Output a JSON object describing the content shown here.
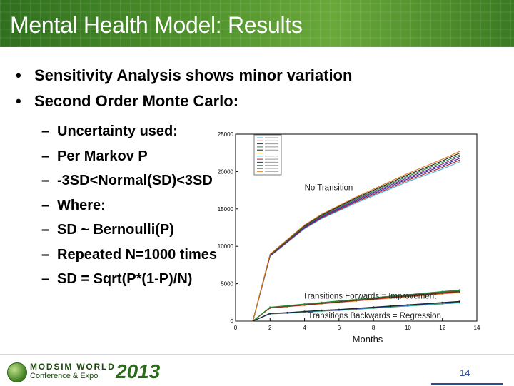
{
  "slide": {
    "title": "Mental Health Model: Results",
    "bullets": [
      "Sensitivity Analysis shows minor variation",
      "Second Order Monte Carlo:"
    ],
    "subbullets": [
      "Uncertainty used:",
      "Per Markov P",
      "-3SD<Normal(SD)<3SD",
      "Where:",
      "SD ~ Bernoulli(P)",
      "Repeated N=1000 times",
      "SD = Sqrt(P*(1-P)/N)"
    ],
    "bullet_marker": "•",
    "dash_marker": "–",
    "page_number": "14"
  },
  "footer": {
    "logo_line1": "MODSIM WORLD",
    "logo_line2": "Conference & Expo",
    "logo_year": "2013"
  },
  "colors": {
    "header": "#4c8f2a",
    "page_number": "#2a4a9a"
  },
  "chart_data": {
    "type": "line",
    "xlabel": "Months",
    "ylabel": "",
    "xlim": [
      0,
      14
    ],
    "ylim": [
      0,
      25000
    ],
    "x_ticks": [
      0,
      2,
      4,
      6,
      8,
      10,
      12,
      14
    ],
    "y_ticks": [
      0,
      5000,
      10000,
      15000,
      20000,
      25000
    ],
    "grid": false,
    "annotations": [
      "No Transition",
      "Transitions Forwards = Improvement",
      "Transitions Backwards = Regression"
    ],
    "groups": [
      {
        "label": "No Transition",
        "x": [
          1,
          2,
          3,
          4,
          5,
          6,
          7,
          8,
          9,
          10,
          11,
          12,
          13
        ],
        "y": [
          1000,
          8800,
          10700,
          12600,
          14000,
          15100,
          16200,
          17200,
          18200,
          19200,
          20100,
          21000,
          22000
        ],
        "spread": [
          0,
          150,
          200,
          250,
          300,
          350,
          400,
          450,
          500,
          550,
          600,
          650,
          700
        ],
        "colors": [
          "#3fb6e0",
          "#c01822",
          "#2a2aa0",
          "#7a1f8a",
          "#1b8a3c",
          "#222222",
          "#e07b1a"
        ]
      },
      {
        "label": "Transitions Forwards = Improvement",
        "x": [
          1,
          2,
          3,
          4,
          5,
          6,
          7,
          8,
          9,
          10,
          11,
          12,
          13
        ],
        "y": [
          0,
          1800,
          2000,
          2200,
          2400,
          2600,
          2800,
          3000,
          3200,
          3400,
          3600,
          3800,
          4000
        ],
        "spread": [
          0,
          60,
          70,
          80,
          90,
          100,
          110,
          120,
          130,
          140,
          150,
          160,
          170
        ],
        "colors": [
          "#e07b1a",
          "#c01822",
          "#3a3a3a",
          "#7a5a1a",
          "#1b8a3c"
        ]
      },
      {
        "label": "Transitions Backwards = Regression",
        "x": [
          1,
          2,
          3,
          4,
          5,
          6,
          7,
          8,
          9,
          10,
          11,
          12,
          13
        ],
        "y": [
          0,
          1000,
          1100,
          1250,
          1400,
          1500,
          1650,
          1800,
          1950,
          2100,
          2250,
          2400,
          2550
        ],
        "spread": [
          0,
          40,
          45,
          50,
          55,
          60,
          65,
          70,
          75,
          80,
          85,
          90,
          95
        ],
        "colors": [
          "#1b8a3c",
          "#3fb6e0",
          "#2a2aa0",
          "#222222"
        ]
      }
    ]
  }
}
